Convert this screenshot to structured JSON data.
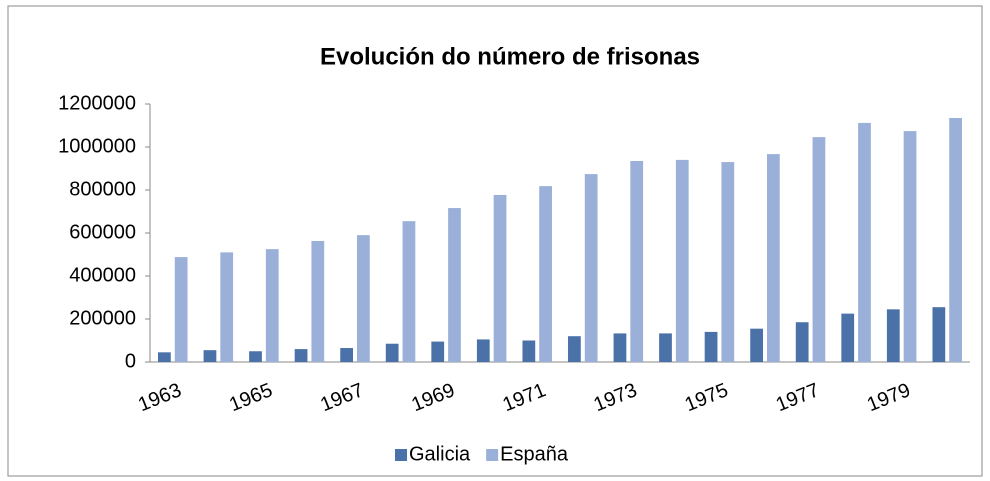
{
  "chart_data": {
    "type": "bar",
    "title": "Evolución do número de frisonas",
    "categories": [
      "1963",
      null,
      "1965",
      null,
      "1967",
      null,
      "1969",
      null,
      "1971",
      null,
      "1973",
      null,
      "1975",
      null,
      "1977",
      null,
      "1979",
      null
    ],
    "series": [
      {
        "name": "Galicia",
        "color": "#4a72a8",
        "values": [
          45000,
          55000,
          50000,
          60000,
          65000,
          85000,
          95000,
          105000,
          100000,
          120000,
          133000,
          133000,
          140000,
          155000,
          185000,
          225000,
          245000,
          255000
        ]
      },
      {
        "name": "España",
        "color": "#9bb0d8",
        "values": [
          488000,
          510000,
          525000,
          563000,
          590000,
          655000,
          716000,
          777000,
          818000,
          874000,
          935000,
          940000,
          930000,
          967000,
          1046000,
          1112000,
          1074000,
          1135000
        ]
      }
    ],
    "ylim": [
      0,
      1200000
    ],
    "yticks": [
      0,
      200000,
      400000,
      600000,
      800000,
      1000000,
      1200000
    ],
    "grid": false,
    "legend": "bottom"
  }
}
